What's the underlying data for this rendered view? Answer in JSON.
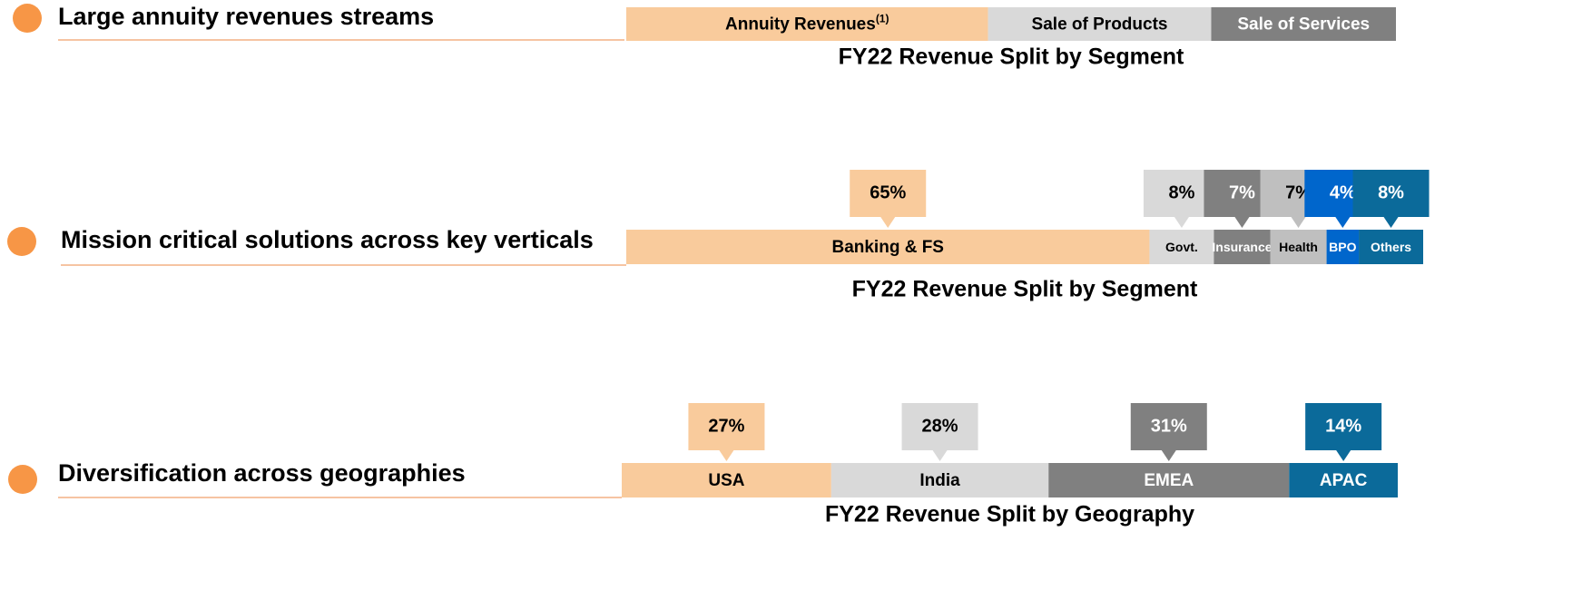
{
  "bullets": [
    "Large annuity revenues streams",
    "Mission critical solutions across  key verticals",
    "Diversification across geographies"
  ],
  "chart_data": [
    {
      "type": "stacked_bar",
      "title": "FY22 Revenue Split by Segment",
      "categories": [
        "Annuity Revenues",
        "Sale of Products",
        "Sale of Services"
      ],
      "note_mark": "(1)",
      "values": [
        47,
        29,
        24
      ],
      "colors": [
        "#f9cb9c",
        "#d9d9d9",
        "#808080"
      ]
    },
    {
      "type": "stacked_bar",
      "title": "FY22 Revenue Split by Segment",
      "categories": [
        "Banking & FS",
        "Govt.",
        "Insurance",
        "Health",
        "BPO",
        "Others"
      ],
      "values": [
        65,
        8,
        7,
        7,
        4,
        8
      ],
      "value_labels": [
        "65%",
        "8%",
        "7%",
        "7%",
        "4%",
        "8%"
      ],
      "colors": [
        "#f9cb9c",
        "#d9d9d9",
        "#808080",
        "#bfbfbf",
        "#0066cc",
        "#0b6a9a"
      ]
    },
    {
      "type": "stacked_bar",
      "title": "FY22 Revenue Split by Geography",
      "categories": [
        "USA",
        "India",
        "EMEA",
        "APAC"
      ],
      "values": [
        27,
        28,
        31,
        14
      ],
      "value_labels": [
        "27%",
        "28%",
        "31%",
        "14%"
      ],
      "colors": [
        "#f9cb9c",
        "#d9d9d9",
        "#808080",
        "#0b6a9a"
      ]
    }
  ]
}
